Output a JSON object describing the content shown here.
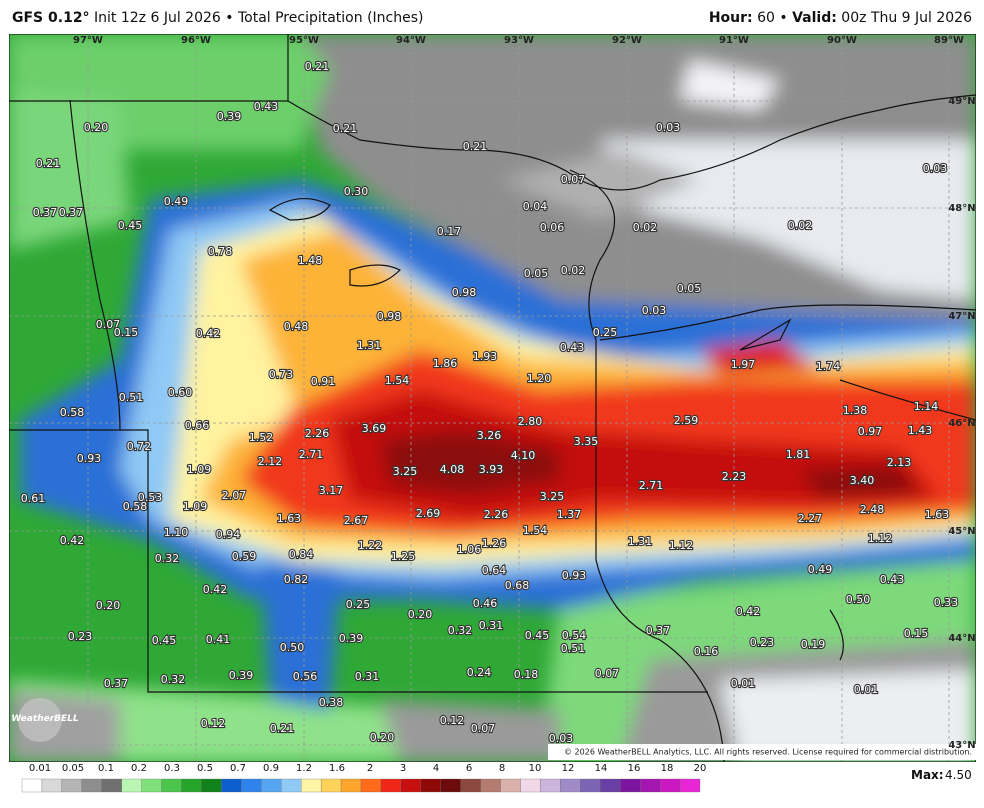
{
  "header": {
    "model": "GFS 0.12°",
    "run": "Init 12z 6 Jul 2026",
    "separator": "•",
    "product": "Total Precipitation (Inches)",
    "hour_label": "Hour:",
    "hour": "60",
    "valid_label": "Valid:",
    "valid": "00z Thu 9 Jul 2026"
  },
  "map": {
    "lon_labels": [
      "97°W",
      "96°W",
      "95°W",
      "94°W",
      "93°W",
      "92°W",
      "91°W",
      "90°W",
      "89°W"
    ],
    "lat_labels": [
      "49°N",
      "48°N",
      "47°N",
      "46°N",
      "45°N",
      "44°N",
      "43°N"
    ],
    "labels": [
      "0.21",
      "0.43",
      "0.39",
      "0.20",
      "0.21",
      "0.21",
      "0.03",
      "0.21",
      "0.07",
      "0.03",
      "0.30",
      "0.49",
      "0.04",
      "0.37",
      "0.37",
      "0.45",
      "0.17",
      "0.06",
      "0.02",
      "0.02",
      "0.78",
      "1.48",
      "0.05",
      "0.02",
      "0.98",
      "0.05",
      "0.03",
      "0.98",
      "0.07",
      "0.15",
      "0.42",
      "0.48",
      "0.25",
      "1.31",
      "0.43",
      "1.86",
      "1.93",
      "1.97",
      "1.74",
      "0.73",
      "0.91",
      "1.54",
      "1.20",
      "0.60",
      "0.51",
      "0.58",
      "1.38",
      "1.14",
      "3.69",
      "3.26",
      "2.80",
      "2.59",
      "0.66",
      "1.52",
      "2.26",
      "3.35",
      "0.97",
      "1.43",
      "0.72",
      "0.93",
      "2.71",
      "4.10",
      "1.81",
      "2.12",
      "1.09",
      "3.25",
      "4.08",
      "3.93",
      "2.23",
      "2.13",
      "3.40",
      "3.17",
      "2.71",
      "0.61",
      "0.53",
      "2.07",
      "0.58",
      "1.09",
      "3.25",
      "2.48",
      "1.63",
      "1.63",
      "2.67",
      "2.69",
      "2.26",
      "1.37",
      "2.27",
      "1.54",
      "1.10",
      "0.94",
      "0.42",
      "1.22",
      "1.31",
      "1.12",
      "1.12",
      "0.84",
      "1.06",
      "1.26",
      "1.25",
      "0.32",
      "0.59",
      "0.64",
      "0.93",
      "0.49",
      "0.82",
      "0.43",
      "0.68",
      "0.42",
      "0.50",
      "0.25",
      "0.46",
      "0.33",
      "0.20",
      "0.20",
      "0.42",
      "0.32",
      "0.31",
      "0.37",
      "0.23",
      "0.45",
      "0.41",
      "0.39",
      "0.45",
      "0.54",
      "0.15",
      "0.23",
      "0.19",
      "0.50",
      "0.51",
      "0.16",
      "0.24",
      "0.18",
      "0.56",
      "0.31",
      "0.39",
      "0.32",
      "0.07",
      "0.37",
      "0.01",
      "0.01",
      "0.38",
      "0.12",
      "0.12",
      "0.07",
      "0.21",
      "0.20",
      "0.03"
    ],
    "logo": "WeatherBELL",
    "copyright": "© 2026 WeatherBELL Analytics, LLC. All rights reserved. License required for commercial distribution."
  },
  "colorbar": {
    "labels": [
      "0.01",
      "0.05",
      "0.1",
      "0.2",
      "0.3",
      "0.5",
      "0.7",
      "0.9",
      "1.2",
      "1.6",
      "2",
      "3",
      "4",
      "6",
      "8",
      "10",
      "12",
      "14",
      "16",
      "18",
      "20"
    ],
    "max_label": "Max:",
    "max": "4.50"
  }
}
